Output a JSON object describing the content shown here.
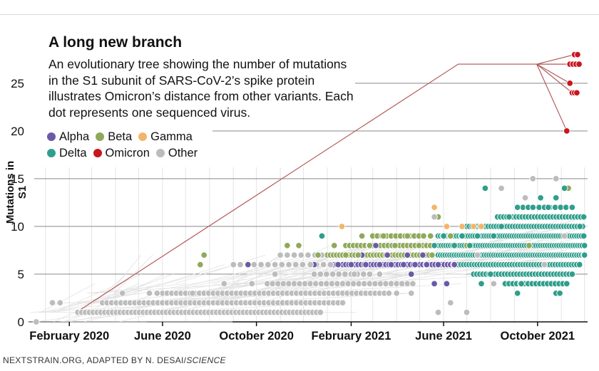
{
  "title": "A long new branch",
  "description": "An evolutionary tree showing the number of mutations in the S1 subunit of SARS-CoV-2’s spike protein illustrates Omicron’s distance from other variants. Each dot represents one sequenced virus.",
  "source_prefix": "NEXTSTRAIN.ORG, ADAPTED BY N. DESAI/",
  "source_publication": "SCIENCE",
  "colors": {
    "alpha": "#6a5aa6",
    "beta": "#8fa95a",
    "gamma": "#f2b56b",
    "delta": "#2f9e8c",
    "omicron": "#c8161d",
    "other": "#bcbcbc",
    "branch": "#b05050"
  },
  "chart_data": {
    "type": "scatter",
    "title": "A long new branch",
    "xlabel": "",
    "ylabel": "Mutations in S1",
    "x_range": [
      "2019-12-10",
      "2021-12-05"
    ],
    "ylim": [
      0,
      28.5
    ],
    "y_ticks": [
      0,
      5,
      10,
      15,
      20,
      25
    ],
    "x_ticks": [
      {
        "date": "2020-02-01",
        "label": "February 2020"
      },
      {
        "date": "2020-06-01",
        "label": "June 2020"
      },
      {
        "date": "2020-10-01",
        "label": "October 2020"
      },
      {
        "date": "2021-02-01",
        "label": "February 2021"
      },
      {
        "date": "2021-06-01",
        "label": "June 2021"
      },
      {
        "date": "2021-10-01",
        "label": "October 2021"
      }
    ],
    "grid": true,
    "legend_position": "top-left",
    "series": [
      {
        "name": "Alpha",
        "color": "#6a5aa6",
        "points": [
          {
            "x": "2020-09-20",
            "y": 6
          },
          {
            "x": "2020-12-15",
            "y": 6
          },
          {
            "x": "2021-01-15",
            "y": 6
          },
          {
            "x": "2021-02-01",
            "y": 6
          },
          {
            "x": "2021-02-20",
            "y": 6
          },
          {
            "x": "2021-03-10",
            "y": 6
          },
          {
            "x": "2021-03-25",
            "y": 6
          },
          {
            "x": "2021-04-10",
            "y": 6
          },
          {
            "x": "2021-04-25",
            "y": 6
          },
          {
            "x": "2021-05-10",
            "y": 6
          },
          {
            "x": "2021-05-25",
            "y": 6
          },
          {
            "x": "2021-02-15",
            "y": 7
          },
          {
            "x": "2021-03-20",
            "y": 7
          },
          {
            "x": "2021-04-15",
            "y": 7
          },
          {
            "x": "2021-05-05",
            "y": 7
          },
          {
            "x": "2021-04-20",
            "y": 5
          },
          {
            "x": "2021-05-20",
            "y": 4
          },
          {
            "x": "2021-06-05",
            "y": 4
          },
          {
            "x": "2021-06-15",
            "y": 6
          },
          {
            "x": "2021-03-05",
            "y": 8
          }
        ]
      },
      {
        "name": "Beta",
        "color": "#8fa95a",
        "points": [
          {
            "x": "2020-07-25",
            "y": 7
          },
          {
            "x": "2020-07-20",
            "y": 6
          },
          {
            "x": "2020-11-10",
            "y": 8
          },
          {
            "x": "2020-11-25",
            "y": 8
          },
          {
            "x": "2020-12-20",
            "y": 7
          },
          {
            "x": "2021-01-10",
            "y": 8
          },
          {
            "x": "2021-01-25",
            "y": 7
          },
          {
            "x": "2021-02-10",
            "y": 7
          },
          {
            "x": "2021-02-25",
            "y": 8
          },
          {
            "x": "2021-03-15",
            "y": 9
          },
          {
            "x": "2021-03-30",
            "y": 8
          },
          {
            "x": "2021-04-15",
            "y": 9
          },
          {
            "x": "2021-04-30",
            "y": 8
          },
          {
            "x": "2021-05-15",
            "y": 9
          },
          {
            "x": "2021-05-25",
            "y": 11
          },
          {
            "x": "2021-06-10",
            "y": 9
          },
          {
            "x": "2021-07-01",
            "y": 8
          },
          {
            "x": "2021-09-20",
            "y": 8
          },
          {
            "x": "2021-11-10",
            "y": 14
          },
          {
            "x": "2021-02-15",
            "y": 9
          }
        ]
      },
      {
        "name": "Gamma",
        "color": "#f2b56b",
        "points": [
          {
            "x": "2021-01-20",
            "y": 10
          },
          {
            "x": "2021-05-20",
            "y": 12
          },
          {
            "x": "2021-06-05",
            "y": 10
          },
          {
            "x": "2021-06-25",
            "y": 10
          },
          {
            "x": "2021-07-10",
            "y": 10
          },
          {
            "x": "2021-07-20",
            "y": 10
          }
        ]
      },
      {
        "name": "Delta",
        "color": "#2f9e8c",
        "points": [
          {
            "x": "2020-12-25",
            "y": 9
          },
          {
            "x": "2021-05-20",
            "y": 8
          },
          {
            "x": "2021-06-01",
            "y": 9
          },
          {
            "x": "2021-06-15",
            "y": 8
          },
          {
            "x": "2021-06-25",
            "y": 9
          },
          {
            "x": "2021-07-05",
            "y": 8
          },
          {
            "x": "2021-07-15",
            "y": 9
          },
          {
            "x": "2021-07-25",
            "y": 14
          },
          {
            "x": "2021-08-05",
            "y": 9
          },
          {
            "x": "2021-08-15",
            "y": 10
          },
          {
            "x": "2021-08-25",
            "y": 11
          },
          {
            "x": "2021-09-05",
            "y": 12
          },
          {
            "x": "2021-09-15",
            "y": 13
          },
          {
            "x": "2021-09-25",
            "y": 12
          },
          {
            "x": "2021-10-05",
            "y": 13
          },
          {
            "x": "2021-10-15",
            "y": 12
          },
          {
            "x": "2021-10-25",
            "y": 13
          },
          {
            "x": "2021-11-05",
            "y": 14
          },
          {
            "x": "2021-11-15",
            "y": 12
          },
          {
            "x": "2021-11-25",
            "y": 10
          },
          {
            "x": "2021-12-01",
            "y": 7
          },
          {
            "x": "2021-09-10",
            "y": 4
          },
          {
            "x": "2021-09-05",
            "y": 3
          },
          {
            "x": "2021-10-25",
            "y": 3
          },
          {
            "x": "2021-10-30",
            "y": 3
          },
          {
            "x": "2021-07-20",
            "y": 4
          },
          {
            "x": "2021-08-01",
            "y": 5
          }
        ]
      },
      {
        "name": "Omicron",
        "color": "#c8161d",
        "points": [
          {
            "x": "2021-11-08",
            "y": 20
          },
          {
            "x": "2021-11-12",
            "y": 25
          },
          {
            "x": "2021-11-15",
            "y": 24
          },
          {
            "x": "2021-11-18",
            "y": 24
          },
          {
            "x": "2021-11-21",
            "y": 24
          },
          {
            "x": "2021-11-12",
            "y": 27
          },
          {
            "x": "2021-11-16",
            "y": 27
          },
          {
            "x": "2021-11-20",
            "y": 27
          },
          {
            "x": "2021-11-24",
            "y": 27
          },
          {
            "x": "2021-11-18",
            "y": 28
          },
          {
            "x": "2021-11-22",
            "y": 28
          }
        ]
      },
      {
        "name": "Other",
        "color": "#bcbcbc",
        "points": [
          {
            "x": "2019-12-20",
            "y": 0
          },
          {
            "x": "2020-01-10",
            "y": 2
          },
          {
            "x": "2020-01-20",
            "y": 2
          },
          {
            "x": "2020-04-10",
            "y": 3
          },
          {
            "x": "2020-05-15",
            "y": 3
          },
          {
            "x": "2020-05-25",
            "y": 3
          },
          {
            "x": "2020-07-10",
            "y": 3
          },
          {
            "x": "2020-08-20",
            "y": 4
          },
          {
            "x": "2020-09-25",
            "y": 4
          },
          {
            "x": "2020-10-25",
            "y": 5
          },
          {
            "x": "2020-12-10",
            "y": 6
          },
          {
            "x": "2021-02-05",
            "y": 5
          },
          {
            "x": "2021-03-10",
            "y": 5
          },
          {
            "x": "2021-04-01",
            "y": 3
          },
          {
            "x": "2021-04-20",
            "y": 3
          },
          {
            "x": "2021-05-25",
            "y": 1
          },
          {
            "x": "2021-06-10",
            "y": 2
          },
          {
            "x": "2021-07-01",
            "y": 1
          },
          {
            "x": "2021-05-20",
            "y": 11
          },
          {
            "x": "2021-07-15",
            "y": 7
          },
          {
            "x": "2021-08-15",
            "y": 14
          },
          {
            "x": "2021-09-25",
            "y": 15
          },
          {
            "x": "2021-10-25",
            "y": 15
          },
          {
            "x": "2021-09-15",
            "y": 13
          },
          {
            "x": "2021-11-05",
            "y": 9
          },
          {
            "x": "2021-10-10",
            "y": 6
          },
          {
            "x": "2021-08-05",
            "y": 4
          }
        ]
      }
    ],
    "clusters": [
      {
        "series": "Other",
        "y": 1,
        "x_start": "2020-02-12",
        "x_end": "2020-12-25",
        "step_days": 5
      },
      {
        "series": "Other",
        "y": 2,
        "x_start": "2020-03-15",
        "x_end": "2021-01-25",
        "step_days": 6
      },
      {
        "series": "Other",
        "y": 3,
        "x_start": "2020-06-01",
        "x_end": "2021-03-25",
        "step_days": 6
      },
      {
        "series": "Other",
        "y": 4,
        "x_start": "2020-10-15",
        "x_end": "2021-04-25",
        "step_days": 7
      },
      {
        "series": "Other",
        "y": 5,
        "x_start": "2020-12-15",
        "x_end": "2021-02-25",
        "step_days": 8
      },
      {
        "series": "Alpha",
        "y": 6,
        "x_start": "2021-01-05",
        "x_end": "2021-06-25",
        "step_days": 4
      },
      {
        "series": "Beta",
        "y": 7,
        "x_start": "2021-01-01",
        "x_end": "2021-05-20",
        "step_days": 4
      },
      {
        "series": "Beta",
        "y": 8,
        "x_start": "2021-01-25",
        "x_end": "2021-05-15",
        "step_days": 5
      },
      {
        "series": "Beta",
        "y": 9,
        "x_start": "2021-03-01",
        "x_end": "2021-05-10",
        "step_days": 6
      },
      {
        "series": "Other",
        "y": 6,
        "x_start": "2020-09-01",
        "x_end": "2021-01-05",
        "step_days": 9
      },
      {
        "series": "Other",
        "y": 7,
        "x_start": "2020-11-01",
        "x_end": "2021-01-01",
        "step_days": 9
      },
      {
        "series": "Delta",
        "y": 5,
        "x_start": "2021-07-10",
        "x_end": "2021-11-15",
        "step_days": 4
      },
      {
        "series": "Delta",
        "y": 6,
        "x_start": "2021-06-20",
        "x_end": "2021-11-25",
        "step_days": 3.5
      },
      {
        "series": "Delta",
        "y": 7,
        "x_start": "2021-05-25",
        "x_end": "2021-12-01",
        "step_days": 3
      },
      {
        "series": "Delta",
        "y": 8,
        "x_start": "2021-05-20",
        "x_end": "2021-12-01",
        "step_days": 3
      },
      {
        "series": "Delta",
        "y": 9,
        "x_start": "2021-05-25",
        "x_end": "2021-12-01",
        "step_days": 3
      },
      {
        "series": "Delta",
        "y": 10,
        "x_start": "2021-07-01",
        "x_end": "2021-12-01",
        "step_days": 3.5
      },
      {
        "series": "Delta",
        "y": 11,
        "x_start": "2021-08-10",
        "x_end": "2021-12-01",
        "step_days": 4
      },
      {
        "series": "Delta",
        "y": 4,
        "x_start": "2021-08-20",
        "x_end": "2021-11-10",
        "step_days": 5
      },
      {
        "series": "Delta",
        "y": 12,
        "x_start": "2021-09-05",
        "x_end": "2021-11-20",
        "step_days": 7
      }
    ],
    "omicron_branch": {
      "path": [
        {
          "x": "2020-02-10",
          "y": 1
        },
        {
          "x": "2021-06-20",
          "y": 27
        },
        {
          "x": "2021-11-05",
          "y": 27
        }
      ],
      "fan_origin": {
        "x": "2021-09-30",
        "y": 27
      },
      "fan_targets": [
        {
          "x": "2021-11-08",
          "y": 20
        },
        {
          "x": "2021-11-15",
          "y": 24
        },
        {
          "x": "2021-11-12",
          "y": 25
        },
        {
          "x": "2021-11-12",
          "y": 27
        },
        {
          "x": "2021-11-18",
          "y": 28
        }
      ]
    }
  }
}
